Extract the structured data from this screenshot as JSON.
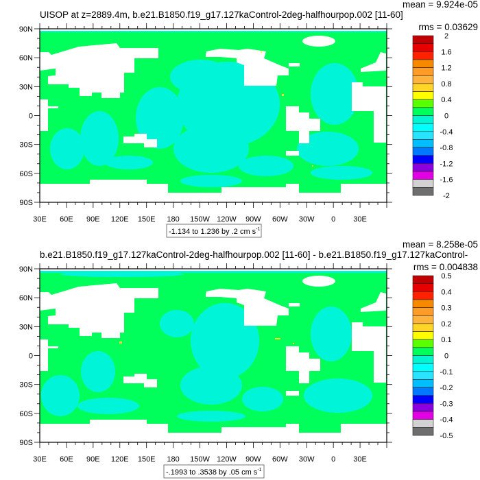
{
  "chart_data": [
    {
      "type": "heatmap",
      "subtype": "filled-contour-map",
      "title": "UISOP at z=2889.4m, b.e21.B1850.f19_g17.127kaControl-2deg-halfhourpop.002 [11-60]",
      "mean_label": "mean = 9.924e-05",
      "rms_label": "rms = 0.03629",
      "info_box": "-1.134 to 1.236 by .2 cm s",
      "info_box_superscript": "-1",
      "lon_ticks": [
        "30E",
        "60E",
        "90E",
        "120E",
        "150E",
        "180",
        "150W",
        "120W",
        "90W",
        "60W",
        "30W",
        "0",
        "30E"
      ],
      "lat_ticks": [
        "90N",
        "60N",
        "30N",
        "0",
        "30S",
        "60S",
        "90S"
      ],
      "colorbar": {
        "levels_labels": [
          "2",
          "1.6",
          "1.2",
          "0.8",
          "0.4",
          "0",
          "-0.4",
          "-0.8",
          "-1.2",
          "-1.6",
          "-2"
        ],
        "range": [
          -2,
          2
        ],
        "step": 0.2
      },
      "dominant_values": "mostly 0 to -0.2 (green/cyan), with isolated yellow cells"
    },
    {
      "type": "heatmap",
      "subtype": "filled-contour-map",
      "title": "b.e21.B1850.f19_g17.127kaControl-2deg-halfhourpop.002 [11-60] - b.e21.B1850.f19_g17.127kaControl-",
      "mean_label": "mean = 8.258e-05",
      "rms_label": "rms = 0.004838",
      "info_box": "-.1993 to .3538 by .05 cm s",
      "info_box_superscript": "-1",
      "lon_ticks": [
        "30E",
        "60E",
        "90E",
        "120E",
        "150E",
        "180",
        "150W",
        "120W",
        "90W",
        "60W",
        "30W",
        "0",
        "30E"
      ],
      "lat_ticks": [
        "90N",
        "60N",
        "30N",
        "0",
        "30S",
        "60S",
        "90S"
      ],
      "colorbar": {
        "levels_labels": [
          "0.5",
          "0.4",
          "0.3",
          "0.2",
          "0.1",
          "0",
          "-0.1",
          "-0.2",
          "-0.3",
          "-0.4",
          "-0.5"
        ],
        "range": [
          -0.5,
          0.5
        ],
        "step": 0.05
      },
      "dominant_values": "mostly 0 to -0.05 (green/cyan), with isolated yellow cells"
    }
  ],
  "colors": {
    "palette": [
      "#c00000",
      "#e60000",
      "#ff2200",
      "#f58a00",
      "#ff9c28",
      "#ffb23c",
      "#ffd628",
      "#ffff00",
      "#5aff00",
      "#00ff5a",
      "#00f5d2",
      "#00ffff",
      "#28e4ff",
      "#00beff",
      "#0078ff",
      "#0000ff",
      "#8c00e0",
      "#e400e4",
      "#d2d2d2",
      "#6e6e6e"
    ],
    "zero_band": "#00ff5a",
    "neg_band": "#00f5d8",
    "missing": "#ffffff"
  }
}
